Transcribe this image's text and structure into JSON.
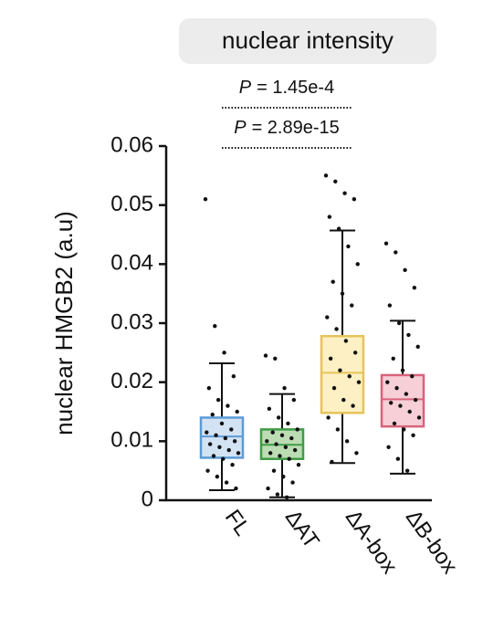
{
  "chart_data": {
    "type": "box",
    "title": "nuclear intensity",
    "ylabel": "nuclear HMGB2 (a.u)",
    "annotations": [
      {
        "italic": "P",
        "text": "= 1.45e-4"
      },
      {
        "italic": "P",
        "text": "= 2.89e-15"
      }
    ],
    "categories": [
      "FL",
      "ΔAT",
      "ΔA-box",
      "ΔB-box"
    ],
    "ylim": [
      0,
      0.06
    ],
    "yticks": [
      0,
      0.01,
      0.02,
      0.03,
      0.04,
      0.05,
      0.06
    ],
    "boxes": [
      {
        "color": "#5b9bd5",
        "fill": "#d3e3f3",
        "whislo": 0.0017,
        "q1": 0.0072,
        "med": 0.0108,
        "q3": 0.014,
        "whishi": 0.0232,
        "points": [
          0.051,
          0.0295,
          0.025,
          0.021,
          0.019,
          0.017,
          0.016,
          0.015,
          0.0145,
          0.013,
          0.012,
          0.0115,
          0.011,
          0.0105,
          0.01,
          0.0095,
          0.009,
          0.0085,
          0.008,
          0.0075,
          0.007,
          0.006,
          0.005,
          0.004,
          0.003,
          0.002
        ]
      },
      {
        "color": "#3f9c46",
        "fill": "#bcdcb4",
        "whislo": 0.0005,
        "q1": 0.007,
        "med": 0.0094,
        "q3": 0.012,
        "whishi": 0.018,
        "points": [
          0.0245,
          0.024,
          0.019,
          0.017,
          0.0155,
          0.014,
          0.013,
          0.012,
          0.0115,
          0.011,
          0.0105,
          0.01,
          0.0095,
          0.009,
          0.0085,
          0.008,
          0.0075,
          0.007,
          0.006,
          0.005,
          0.004,
          0.003,
          0.002,
          0.001,
          0.0005
        ]
      },
      {
        "color": "#e6c35c",
        "fill": "#fcf0c4",
        "whislo": 0.0063,
        "q1": 0.0148,
        "med": 0.0216,
        "q3": 0.0278,
        "whishi": 0.0457,
        "points": [
          0.055,
          0.054,
          0.052,
          0.051,
          0.048,
          0.046,
          0.043,
          0.04,
          0.037,
          0.035,
          0.033,
          0.031,
          0.029,
          0.027,
          0.025,
          0.024,
          0.022,
          0.021,
          0.02,
          0.019,
          0.017,
          0.016,
          0.014,
          0.012,
          0.01,
          0.008,
          0.0065
        ]
      },
      {
        "color": "#d8637c",
        "fill": "#f6cfd7",
        "whislo": 0.0045,
        "q1": 0.0125,
        "med": 0.0171,
        "q3": 0.0212,
        "whishi": 0.0304,
        "points": [
          0.0435,
          0.042,
          0.039,
          0.036,
          0.033,
          0.03,
          0.028,
          0.026,
          0.024,
          0.022,
          0.021,
          0.02,
          0.019,
          0.018,
          0.017,
          0.0165,
          0.016,
          0.015,
          0.014,
          0.013,
          0.012,
          0.011,
          0.009,
          0.007,
          0.005
        ]
      }
    ]
  }
}
